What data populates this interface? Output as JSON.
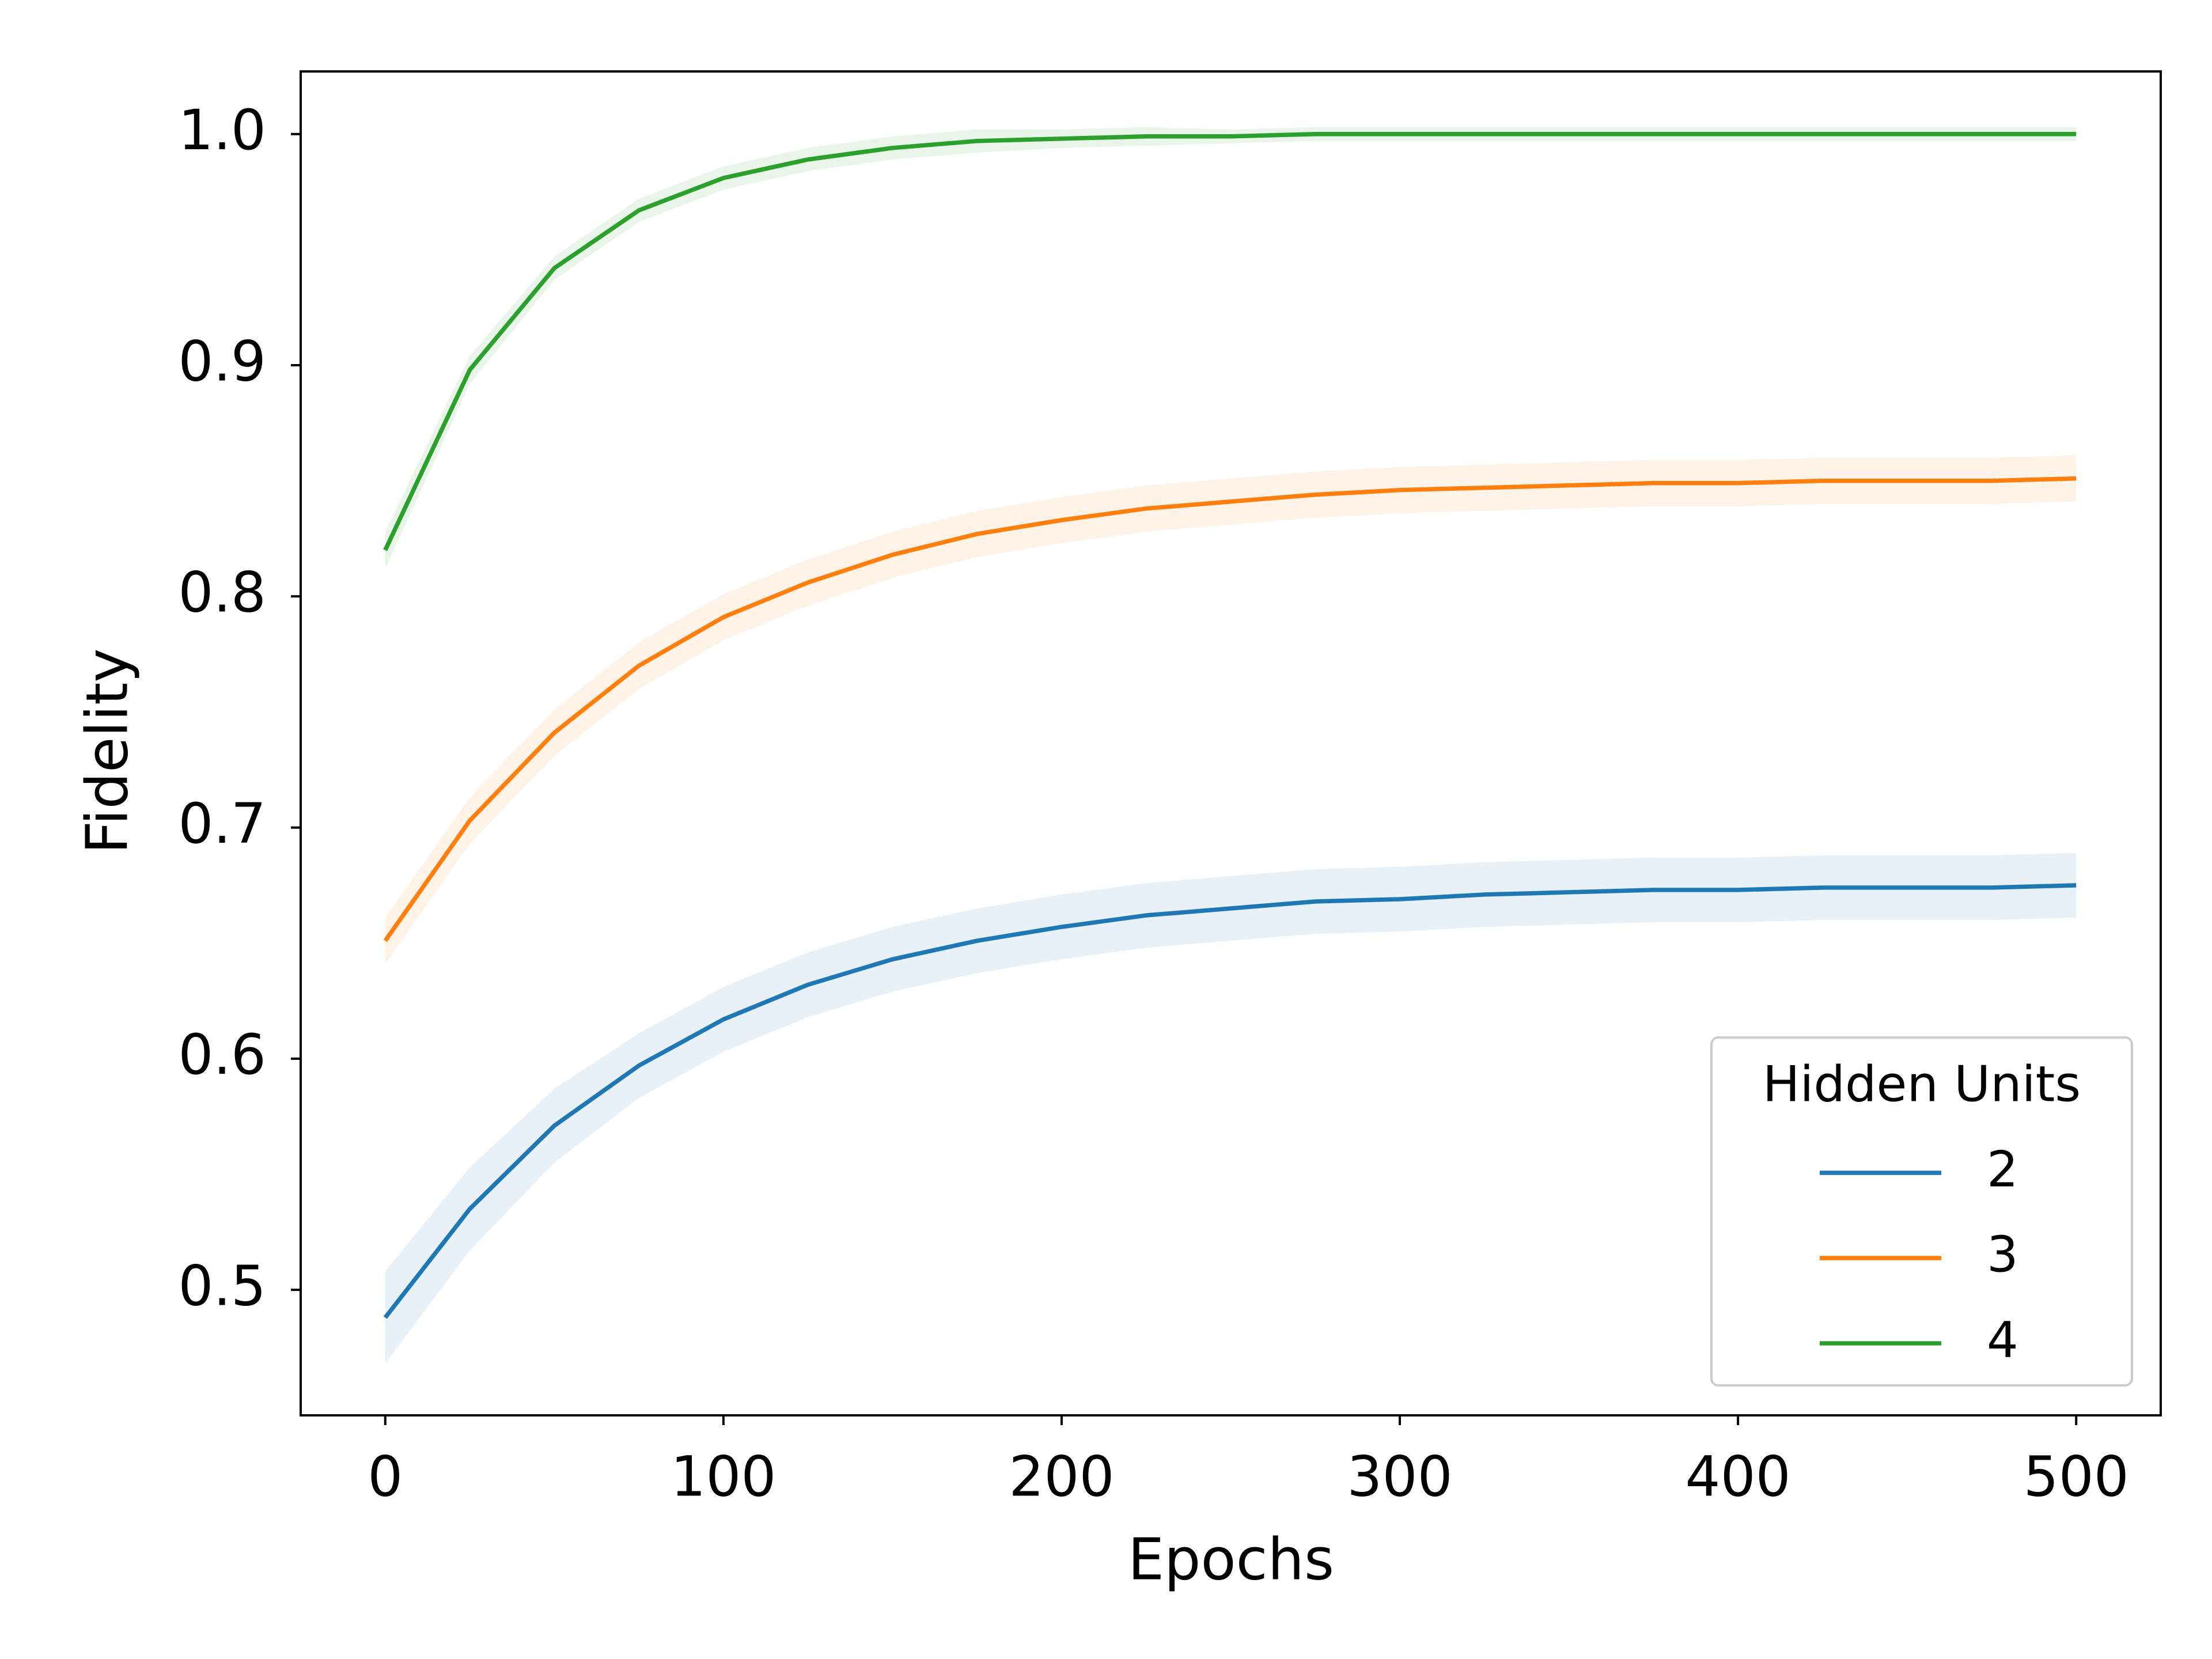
{
  "chart_data": {
    "type": "line",
    "xlabel": "Epochs",
    "ylabel": "Fidelity",
    "legend_title": "Hidden Units",
    "legend_loc": "lower right",
    "x": [
      0,
      25,
      50,
      75,
      100,
      125,
      150,
      175,
      200,
      225,
      250,
      275,
      300,
      325,
      350,
      375,
      400,
      425,
      450,
      475,
      500
    ],
    "series": [
      {
        "name": "2",
        "color": "#1f77b4",
        "values": [
          0.488,
          0.535,
          0.571,
          0.597,
          0.617,
          0.632,
          0.643,
          0.651,
          0.657,
          0.662,
          0.665,
          0.668,
          0.669,
          0.671,
          0.672,
          0.673,
          0.673,
          0.674,
          0.674,
          0.674,
          0.675
        ],
        "lower": [
          0.468,
          0.517,
          0.555,
          0.583,
          0.603,
          0.618,
          0.629,
          0.637,
          0.643,
          0.648,
          0.651,
          0.654,
          0.655,
          0.657,
          0.658,
          0.659,
          0.659,
          0.66,
          0.66,
          0.66,
          0.661
        ],
        "upper": [
          0.508,
          0.553,
          0.587,
          0.611,
          0.631,
          0.646,
          0.657,
          0.665,
          0.671,
          0.676,
          0.679,
          0.682,
          0.683,
          0.685,
          0.686,
          0.687,
          0.687,
          0.688,
          0.688,
          0.688,
          0.689
        ]
      },
      {
        "name": "3",
        "color": "#ff7f0e",
        "values": [
          0.651,
          0.703,
          0.741,
          0.77,
          0.791,
          0.806,
          0.818,
          0.827,
          0.833,
          0.838,
          0.841,
          0.844,
          0.846,
          0.847,
          0.848,
          0.849,
          0.849,
          0.85,
          0.85,
          0.85,
          0.851
        ],
        "lower": [
          0.641,
          0.693,
          0.731,
          0.76,
          0.781,
          0.796,
          0.808,
          0.817,
          0.823,
          0.828,
          0.831,
          0.834,
          0.836,
          0.837,
          0.838,
          0.839,
          0.839,
          0.84,
          0.84,
          0.84,
          0.841
        ],
        "upper": [
          0.661,
          0.713,
          0.751,
          0.78,
          0.801,
          0.816,
          0.828,
          0.837,
          0.843,
          0.848,
          0.851,
          0.854,
          0.856,
          0.857,
          0.858,
          0.859,
          0.859,
          0.86,
          0.86,
          0.86,
          0.861
        ]
      },
      {
        "name": "4",
        "color": "#2ca02c",
        "values": [
          0.82,
          0.898,
          0.942,
          0.967,
          0.981,
          0.989,
          0.994,
          0.997,
          0.998,
          0.999,
          0.999,
          1.0,
          1.0,
          1.0,
          1.0,
          1.0,
          1.0,
          1.0,
          1.0,
          1.0,
          1.0
        ],
        "lower": [
          0.812,
          0.892,
          0.937,
          0.962,
          0.976,
          0.984,
          0.989,
          0.992,
          0.994,
          0.995,
          0.996,
          0.997,
          0.997,
          0.997,
          0.997,
          0.997,
          0.997,
          0.997,
          0.997,
          0.997,
          0.997
        ],
        "upper": [
          0.828,
          0.904,
          0.947,
          0.972,
          0.986,
          0.994,
          0.999,
          1.002,
          1.002,
          1.003,
          1.002,
          1.003,
          1.003,
          1.003,
          1.003,
          1.003,
          1.003,
          1.003,
          1.003,
          1.003,
          1.003
        ]
      }
    ],
    "xlim": [
      -25,
      525
    ],
    "ylim": [
      0.4457,
      1.0271
    ],
    "xticks": [
      0,
      100,
      200,
      300,
      400,
      500
    ],
    "yticks": [
      0.5,
      0.6,
      0.7,
      0.8,
      0.9,
      {
        "value": 1.0,
        "label": "1.0"
      }
    ],
    "grid": false
  }
}
